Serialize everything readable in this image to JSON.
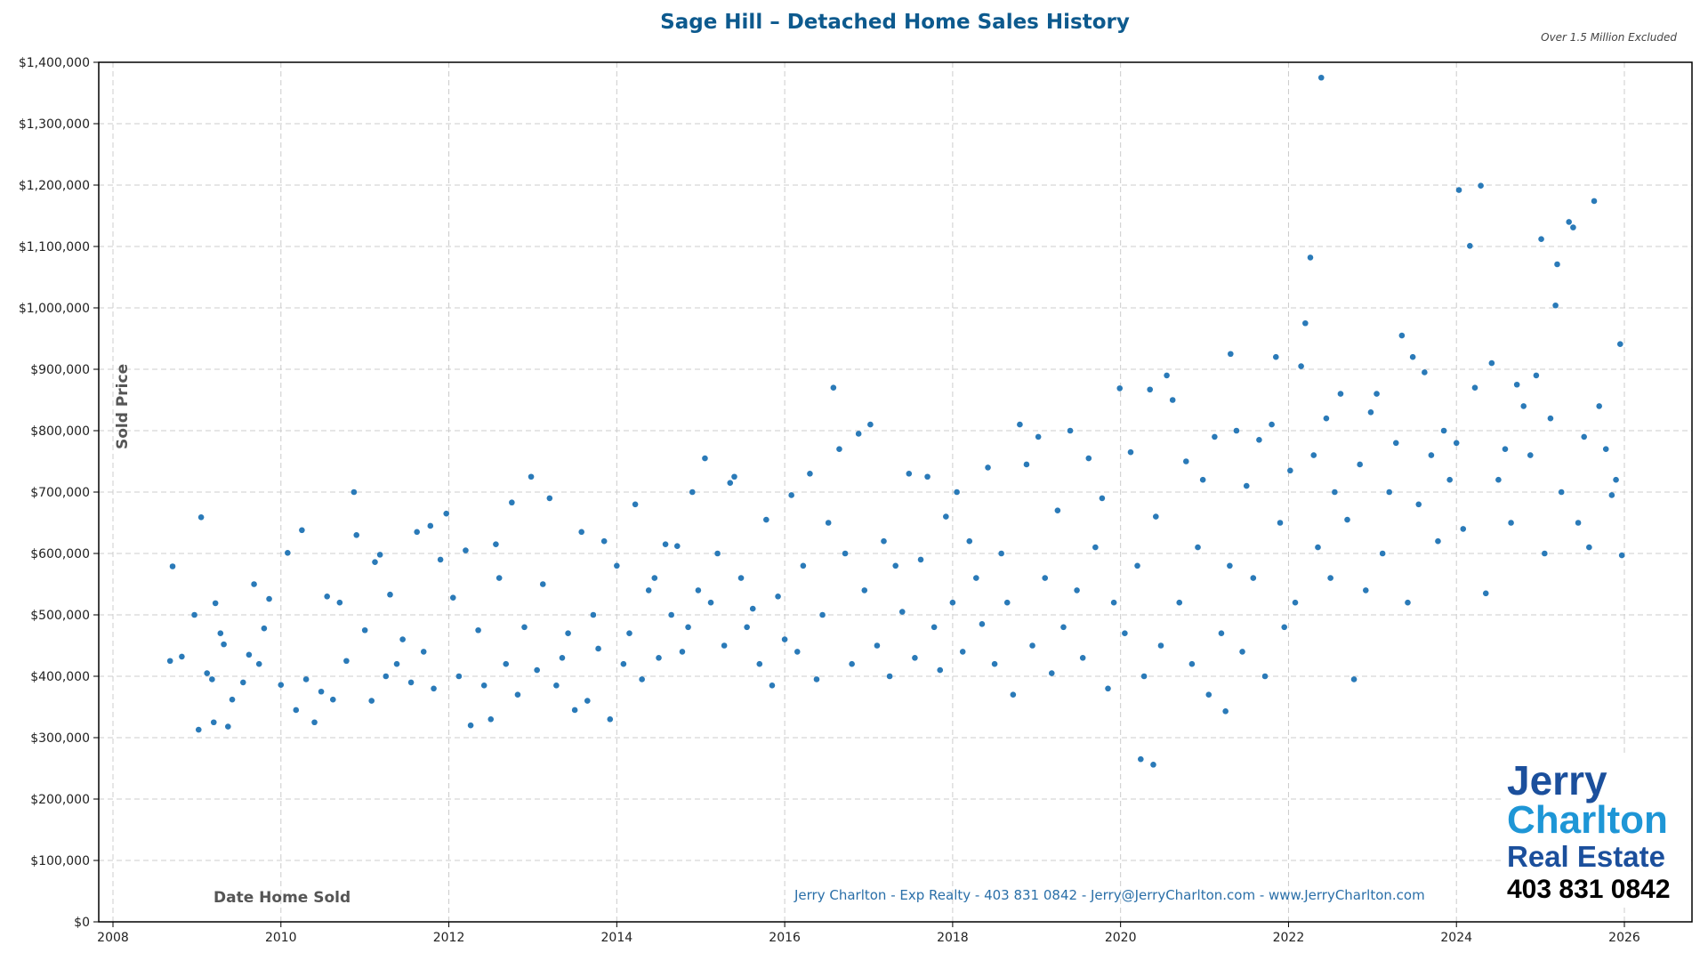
{
  "chart_data": {
    "type": "scatter",
    "title": "Sage Hill – Detached Home Sales History",
    "subtitle": "Over 1.5 Million Excluded",
    "xlabel": "Date Home Sold",
    "ylabel": "Sold Price",
    "xlim": [
      2007.8,
      2026.7
    ],
    "ylim": [
      0,
      1400000
    ],
    "x_ticks": [
      2008,
      2010,
      2012,
      2014,
      2016,
      2018,
      2020,
      2022,
      2024,
      2026
    ],
    "y_ticks": [
      0,
      100000,
      200000,
      300000,
      400000,
      500000,
      600000,
      700000,
      800000,
      900000,
      1000000,
      1100000,
      1200000,
      1300000,
      1400000
    ],
    "y_tick_labels": [
      "$0",
      "$100,000",
      "$200,000",
      "$300,000",
      "$400,000",
      "$500,000",
      "$600,000",
      "$700,000",
      "$800,000",
      "$900,000",
      "$1,000,000",
      "$1,100,000",
      "$1,200,000",
      "$1,300,000",
      "$1,400,000"
    ],
    "grid": true,
    "point_color": "#2a7ab8",
    "points": [
      [
        2008.71,
        579000
      ],
      [
        2008.68,
        425000
      ],
      [
        2008.82,
        432000
      ],
      [
        2008.97,
        500000
      ],
      [
        2009.05,
        659000
      ],
      [
        2009.02,
        313000
      ],
      [
        2009.12,
        405000
      ],
      [
        2009.18,
        395000
      ],
      [
        2009.2,
        325000
      ],
      [
        2009.22,
        519000
      ],
      [
        2009.28,
        470000
      ],
      [
        2009.32,
        452000
      ],
      [
        2009.37,
        318000
      ],
      [
        2009.42,
        362000
      ],
      [
        2009.55,
        390000
      ],
      [
        2009.62,
        435000
      ],
      [
        2009.68,
        550000
      ],
      [
        2009.74,
        420000
      ],
      [
        2009.8,
        478000
      ],
      [
        2009.86,
        526000
      ],
      [
        2010.0,
        386000
      ],
      [
        2010.08,
        601000
      ],
      [
        2010.18,
        345000
      ],
      [
        2010.25,
        638000
      ],
      [
        2010.3,
        395000
      ],
      [
        2010.4,
        325000
      ],
      [
        2010.48,
        375000
      ],
      [
        2010.55,
        530000
      ],
      [
        2010.62,
        362000
      ],
      [
        2010.7,
        520000
      ],
      [
        2010.78,
        425000
      ],
      [
        2010.9,
        630000
      ],
      [
        2010.87,
        700000
      ],
      [
        2011.0,
        475000
      ],
      [
        2011.08,
        360000
      ],
      [
        2011.12,
        586000
      ],
      [
        2011.18,
        598000
      ],
      [
        2011.25,
        400000
      ],
      [
        2011.3,
        533000
      ],
      [
        2011.38,
        420000
      ],
      [
        2011.45,
        460000
      ],
      [
        2011.55,
        390000
      ],
      [
        2011.62,
        635000
      ],
      [
        2011.7,
        440000
      ],
      [
        2011.78,
        645000
      ],
      [
        2011.82,
        380000
      ],
      [
        2011.9,
        590000
      ],
      [
        2011.97,
        665000
      ],
      [
        2012.05,
        528000
      ],
      [
        2012.12,
        400000
      ],
      [
        2012.2,
        605000
      ],
      [
        2012.26,
        320000
      ],
      [
        2012.35,
        475000
      ],
      [
        2012.42,
        385000
      ],
      [
        2012.5,
        330000
      ],
      [
        2012.56,
        615000
      ],
      [
        2012.6,
        560000
      ],
      [
        2012.68,
        420000
      ],
      [
        2012.75,
        683000
      ],
      [
        2012.82,
        370000
      ],
      [
        2012.9,
        480000
      ],
      [
        2012.98,
        725000
      ],
      [
        2013.05,
        410000
      ],
      [
        2013.12,
        550000
      ],
      [
        2013.2,
        690000
      ],
      [
        2013.28,
        385000
      ],
      [
        2013.35,
        430000
      ],
      [
        2013.42,
        470000
      ],
      [
        2013.5,
        345000
      ],
      [
        2013.58,
        635000
      ],
      [
        2013.65,
        360000
      ],
      [
        2013.72,
        500000
      ],
      [
        2013.78,
        445000
      ],
      [
        2013.85,
        620000
      ],
      [
        2013.92,
        330000
      ],
      [
        2014.0,
        580000
      ],
      [
        2014.08,
        420000
      ],
      [
        2014.15,
        470000
      ],
      [
        2014.22,
        680000
      ],
      [
        2014.3,
        395000
      ],
      [
        2014.38,
        540000
      ],
      [
        2014.45,
        560000
      ],
      [
        2014.5,
        430000
      ],
      [
        2014.58,
        615000
      ],
      [
        2014.65,
        500000
      ],
      [
        2014.72,
        612000
      ],
      [
        2014.78,
        440000
      ],
      [
        2014.85,
        480000
      ],
      [
        2014.9,
        700000
      ],
      [
        2014.97,
        540000
      ],
      [
        2015.05,
        755000
      ],
      [
        2015.12,
        520000
      ],
      [
        2015.2,
        600000
      ],
      [
        2015.28,
        450000
      ],
      [
        2015.35,
        715000
      ],
      [
        2015.4,
        725000
      ],
      [
        2015.48,
        560000
      ],
      [
        2015.55,
        480000
      ],
      [
        2015.62,
        510000
      ],
      [
        2015.7,
        420000
      ],
      [
        2015.78,
        655000
      ],
      [
        2015.85,
        385000
      ],
      [
        2015.92,
        530000
      ],
      [
        2016.0,
        460000
      ],
      [
        2016.08,
        695000
      ],
      [
        2016.15,
        440000
      ],
      [
        2016.22,
        580000
      ],
      [
        2016.3,
        730000
      ],
      [
        2016.38,
        395000
      ],
      [
        2016.45,
        500000
      ],
      [
        2016.52,
        650000
      ],
      [
        2016.58,
        870000
      ],
      [
        2016.65,
        770000
      ],
      [
        2016.72,
        600000
      ],
      [
        2016.8,
        420000
      ],
      [
        2016.88,
        795000
      ],
      [
        2016.95,
        540000
      ],
      [
        2017.02,
        810000
      ],
      [
        2017.1,
        450000
      ],
      [
        2017.18,
        620000
      ],
      [
        2017.25,
        400000
      ],
      [
        2017.32,
        580000
      ],
      [
        2017.4,
        505000
      ],
      [
        2017.48,
        730000
      ],
      [
        2017.55,
        430000
      ],
      [
        2017.62,
        590000
      ],
      [
        2017.7,
        725000
      ],
      [
        2017.78,
        480000
      ],
      [
        2017.85,
        410000
      ],
      [
        2017.92,
        660000
      ],
      [
        2018.0,
        520000
      ],
      [
        2018.05,
        700000
      ],
      [
        2018.12,
        440000
      ],
      [
        2018.2,
        620000
      ],
      [
        2018.28,
        560000
      ],
      [
        2018.35,
        485000
      ],
      [
        2018.42,
        740000
      ],
      [
        2018.5,
        420000
      ],
      [
        2018.58,
        600000
      ],
      [
        2018.65,
        520000
      ],
      [
        2018.72,
        370000
      ],
      [
        2018.8,
        810000
      ],
      [
        2018.88,
        745000
      ],
      [
        2018.95,
        450000
      ],
      [
        2019.02,
        790000
      ],
      [
        2019.1,
        560000
      ],
      [
        2019.18,
        405000
      ],
      [
        2019.25,
        670000
      ],
      [
        2019.32,
        480000
      ],
      [
        2019.4,
        800000
      ],
      [
        2019.48,
        540000
      ],
      [
        2019.55,
        430000
      ],
      [
        2019.62,
        755000
      ],
      [
        2019.7,
        610000
      ],
      [
        2019.78,
        690000
      ],
      [
        2019.85,
        380000
      ],
      [
        2019.92,
        520000
      ],
      [
        2019.99,
        869000
      ],
      [
        2020.05,
        470000
      ],
      [
        2020.12,
        765000
      ],
      [
        2020.2,
        580000
      ],
      [
        2020.28,
        400000
      ],
      [
        2020.35,
        867000
      ],
      [
        2020.24,
        265000
      ],
      [
        2020.39,
        256000
      ],
      [
        2020.42,
        660000
      ],
      [
        2020.48,
        450000
      ],
      [
        2020.55,
        890000
      ],
      [
        2020.62,
        850000
      ],
      [
        2020.7,
        520000
      ],
      [
        2020.78,
        750000
      ],
      [
        2020.85,
        420000
      ],
      [
        2020.92,
        610000
      ],
      [
        2020.98,
        720000
      ],
      [
        2021.05,
        370000
      ],
      [
        2021.12,
        790000
      ],
      [
        2021.2,
        470000
      ],
      [
        2021.25,
        343000
      ],
      [
        2021.3,
        580000
      ],
      [
        2021.31,
        925000
      ],
      [
        2021.38,
        800000
      ],
      [
        2021.45,
        440000
      ],
      [
        2021.5,
        710000
      ],
      [
        2021.58,
        560000
      ],
      [
        2021.65,
        785000
      ],
      [
        2021.72,
        400000
      ],
      [
        2021.8,
        810000
      ],
      [
        2021.85,
        920000
      ],
      [
        2021.9,
        650000
      ],
      [
        2021.95,
        480000
      ],
      [
        2022.02,
        735000
      ],
      [
        2022.08,
        520000
      ],
      [
        2022.15,
        905000
      ],
      [
        2022.2,
        975000
      ],
      [
        2022.26,
        1082000
      ],
      [
        2022.3,
        760000
      ],
      [
        2022.35,
        610000
      ],
      [
        2022.39,
        1375000
      ],
      [
        2022.45,
        820000
      ],
      [
        2022.5,
        560000
      ],
      [
        2022.55,
        700000
      ],
      [
        2022.62,
        860000
      ],
      [
        2022.7,
        655000
      ],
      [
        2022.78,
        395000
      ],
      [
        2022.85,
        745000
      ],
      [
        2022.92,
        540000
      ],
      [
        2022.98,
        830000
      ],
      [
        2023.05,
        860000
      ],
      [
        2023.12,
        600000
      ],
      [
        2023.2,
        700000
      ],
      [
        2023.28,
        780000
      ],
      [
        2023.35,
        955000
      ],
      [
        2023.42,
        520000
      ],
      [
        2023.48,
        920000
      ],
      [
        2023.55,
        680000
      ],
      [
        2023.62,
        895000
      ],
      [
        2023.7,
        760000
      ],
      [
        2023.78,
        620000
      ],
      [
        2023.85,
        800000
      ],
      [
        2023.92,
        720000
      ],
      [
        2024.0,
        780000
      ],
      [
        2024.03,
        1192000
      ],
      [
        2024.08,
        640000
      ],
      [
        2024.16,
        1101000
      ],
      [
        2024.22,
        870000
      ],
      [
        2024.29,
        1199000
      ],
      [
        2024.35,
        535000
      ],
      [
        2024.42,
        910000
      ],
      [
        2024.5,
        720000
      ],
      [
        2024.58,
        770000
      ],
      [
        2024.65,
        650000
      ],
      [
        2024.72,
        875000
      ],
      [
        2024.8,
        840000
      ],
      [
        2024.88,
        760000
      ],
      [
        2024.95,
        890000
      ],
      [
        2025.01,
        1112000
      ],
      [
        2025.05,
        600000
      ],
      [
        2025.12,
        820000
      ],
      [
        2025.18,
        1004000
      ],
      [
        2025.2,
        1071000
      ],
      [
        2025.25,
        700000
      ],
      [
        2025.34,
        1140000
      ],
      [
        2025.39,
        1131000
      ],
      [
        2025.45,
        650000
      ],
      [
        2025.52,
        790000
      ],
      [
        2025.58,
        610000
      ],
      [
        2025.64,
        1174000
      ],
      [
        2025.7,
        840000
      ],
      [
        2025.78,
        770000
      ],
      [
        2025.85,
        695000
      ],
      [
        2025.9,
        720000
      ],
      [
        2025.95,
        941000
      ],
      [
        2025.97,
        597000
      ]
    ]
  },
  "footer": {
    "contact": "Jerry Charlton - Exp Realty - 403 831 0842 - Jerry@JerryCharlton.com - www.JerryCharlton.com"
  },
  "logo": {
    "line1": "Jerry",
    "line2": "Charlton",
    "line3": "Real Estate",
    "phone": "403 831 0842"
  }
}
